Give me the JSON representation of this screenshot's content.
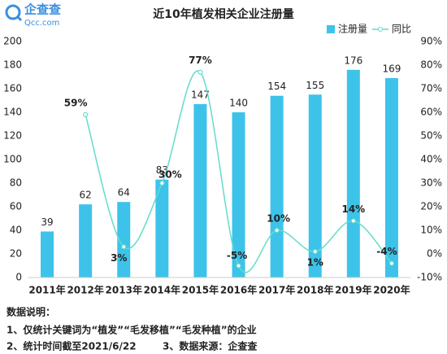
{
  "logo": {
    "name": "企查查",
    "site": "Qcc.com"
  },
  "chart_data": {
    "type": "bar_line",
    "title": "近10年植发相关企业注册量",
    "categories": [
      "2011年",
      "2012年",
      "2013年",
      "2014年",
      "2015年",
      "2016年",
      "2017年",
      "2018年",
      "2019年",
      "2020年"
    ],
    "series": [
      {
        "name": "注册量",
        "color": "#3dc3ea",
        "values": [
          39,
          62,
          64,
          83,
          147,
          140,
          154,
          155,
          176,
          169
        ]
      },
      {
        "name": "同比",
        "color": "#62dccb",
        "axis": "y2",
        "values": [
          null,
          59,
          3,
          30,
          77,
          -5,
          10,
          1,
          14,
          -4
        ],
        "value_labels": [
          null,
          "59%",
          "3%",
          "30%",
          "77%",
          "-5%",
          "10%",
          "1%",
          "14%",
          "-4%"
        ]
      }
    ],
    "ylim": [
      0,
      200
    ],
    "yticks": [
      0,
      20,
      40,
      60,
      80,
      100,
      120,
      140,
      160,
      180,
      200
    ],
    "y2lim": [
      -10,
      90
    ],
    "y2ticks": [
      {
        "value": -10,
        "label": "-10%"
      },
      {
        "value": 0,
        "label": "0%"
      },
      {
        "value": 10,
        "label": "10%"
      },
      {
        "value": 20,
        "label": "20%"
      },
      {
        "value": 30,
        "label": "30%"
      },
      {
        "value": 40,
        "label": "40%"
      },
      {
        "value": 50,
        "label": "50%"
      },
      {
        "value": 60,
        "label": "60%"
      },
      {
        "value": 70,
        "label": "70%"
      },
      {
        "value": 80,
        "label": "80%"
      },
      {
        "value": 90,
        "label": "90%"
      }
    ],
    "legend": "top-right"
  },
  "notes": {
    "heading": "数据说明：",
    "lines": [
      "1、仅统计关键词为“植发”“毛发移植”“毛发种植”的企业",
      "2、统计时间截至2021/6/22",
      "3、数据来源：企查查"
    ]
  }
}
